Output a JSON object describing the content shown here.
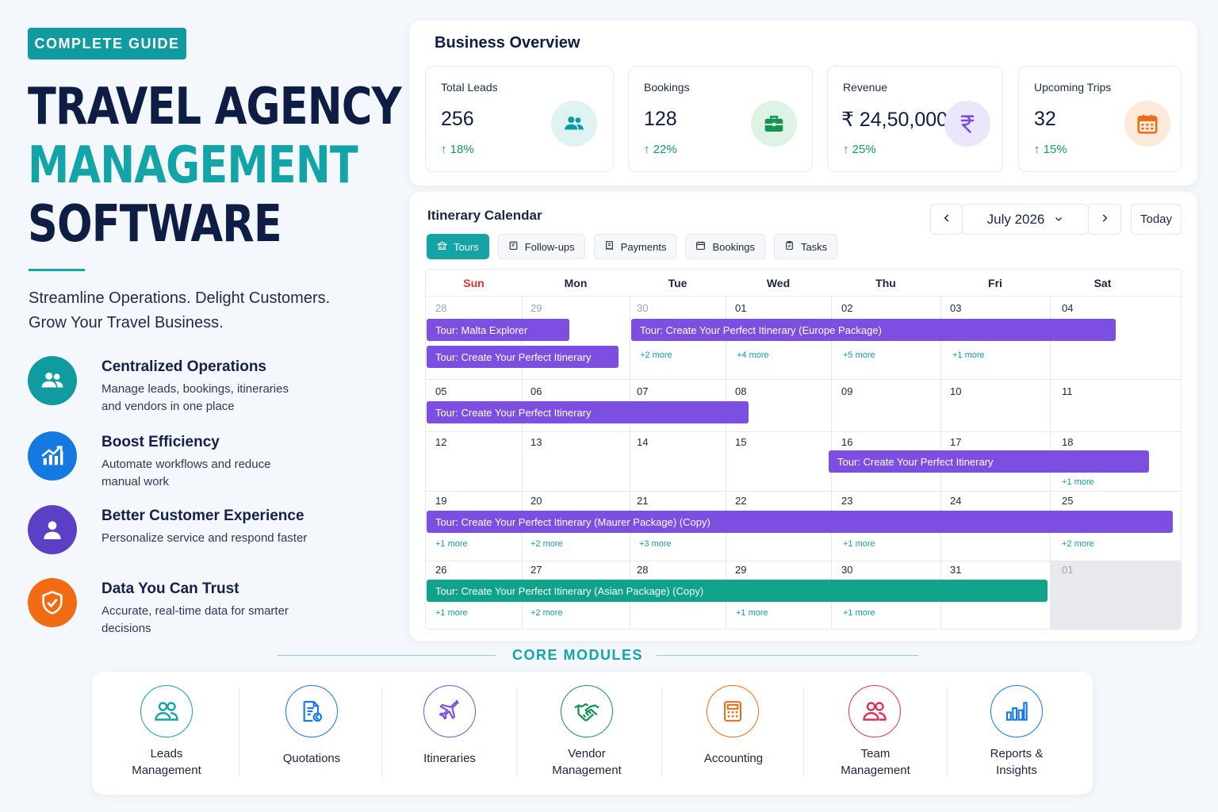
{
  "hero": {
    "badge": "COMPLETE GUIDE",
    "title_line1": "TRAVEL AGENCY",
    "title_line2": "MANAGEMENT",
    "title_line3": "SOFTWARE",
    "tagline_line1": "Streamline Operations. Delight Customers.",
    "tagline_line2": "Grow Your Travel Business."
  },
  "features": [
    {
      "title": "Centralized Operations",
      "desc": "Manage leads, bookings, itineraries and vendors in one place",
      "icon": "users-icon",
      "color": "#0f9b9f"
    },
    {
      "title": "Boost Efficiency",
      "desc": "Automate workflows and reduce manual work",
      "icon": "growth-chart-icon",
      "color": "#1479e0"
    },
    {
      "title": "Better Customer Experience",
      "desc": "Personalize service and respond faster",
      "icon": "user-icon",
      "color": "#5b3fc4"
    },
    {
      "title": "Data You Can Trust",
      "desc": "Accurate, real-time data for smarter decisions",
      "icon": "shield-check-icon",
      "color": "#f06b12"
    }
  ],
  "overview": {
    "title": "Business Overview",
    "stats": [
      {
        "label": "Total Leads",
        "value": "256",
        "change": "18%",
        "icon": "users-icon",
        "icon_bg": "#dff3f3",
        "icon_color": "#0f9b9f"
      },
      {
        "label": "Bookings",
        "value": "128",
        "change": "22%",
        "icon": "briefcase-icon",
        "icon_bg": "#dff2e6",
        "icon_color": "#13944f"
      },
      {
        "label": "Revenue",
        "value": "₹ 24,50,000",
        "change": "25%",
        "icon": "rupee-icon",
        "icon_bg": "#ece6fb",
        "icon_color": "#7c4fe0"
      },
      {
        "label": "Upcoming Trips",
        "value": "32",
        "change": "15%",
        "icon": "calendar-icon",
        "icon_bg": "#fdeadb",
        "icon_color": "#f06b12"
      }
    ]
  },
  "calendar": {
    "title": "Itinerary Calendar",
    "month": "July 2026",
    "today_label": "Today",
    "filters": [
      {
        "label": "Tours",
        "icon": "tours-icon"
      },
      {
        "label": "Follow-ups",
        "icon": "follow-ups-icon"
      },
      {
        "label": "Payments",
        "icon": "payments-icon"
      },
      {
        "label": "Bookings",
        "icon": "bookings-icon"
      },
      {
        "label": "Tasks",
        "icon": "tasks-icon"
      }
    ],
    "days": [
      "Sun",
      "Mon",
      "Tue",
      "Wed",
      "Thu",
      "Fri",
      "Sat"
    ],
    "weeks": [
      [
        "28",
        "29",
        "30",
        "01",
        "02",
        "03",
        "04"
      ],
      [
        "05",
        "06",
        "07",
        "08",
        "09",
        "10",
        "11"
      ],
      [
        "12",
        "13",
        "14",
        "15",
        "16",
        "17",
        "18"
      ],
      [
        "19",
        "20",
        "21",
        "22",
        "23",
        "24",
        "25"
      ],
      [
        "26",
        "27",
        "28",
        "29",
        "30",
        "31",
        "01"
      ]
    ],
    "events": [
      "Tour: Malta Explorer",
      "Tour: Create Your Perfect Itinerary",
      "Tour: Create Your Perfect Itinerary (Europe Package)",
      "Tour: Create Your Perfect Itinerary",
      "Tour: Create Your Perfect Itinerary",
      "Tour: Create Your Perfect Itinerary (Maurer Package) (Copy)",
      "Tour: Create Your Perfect Itinerary (Asian Package) (Copy)"
    ],
    "more_links": [
      "+2 more",
      "+4 more",
      "+5 more",
      "+1 more",
      "+1 more",
      "+1 more",
      "+2 more",
      "+3 more",
      "+1 more",
      "+2 more",
      "+1 more",
      "+2 more",
      "+1 more",
      "+1 more"
    ],
    "colors": {
      "event_purple": "#7c4fe0",
      "event_green": "#0fa48a",
      "sunday_red": "#e0302d"
    }
  },
  "core_modules": {
    "title": "CORE MODULES",
    "items": [
      {
        "line1": "Leads",
        "line2": "Management",
        "icon": "leads-icon",
        "color": "#13a4a7"
      },
      {
        "line1": "Quotations",
        "line2": "",
        "icon": "quotation-icon",
        "color": "#1479e0"
      },
      {
        "line1": "Itineraries",
        "line2": "",
        "icon": "plane-icon",
        "color": "#7c4fe0"
      },
      {
        "line1": "Vendor",
        "line2": "Management",
        "icon": "handshake-icon",
        "color": "#13944f"
      },
      {
        "line1": "Accounting",
        "line2": "",
        "icon": "calculator-icon",
        "color": "#f06b12"
      },
      {
        "line1": "Team",
        "line2": "Management",
        "icon": "team-icon",
        "color": "#e0305a"
      },
      {
        "line1": "Reports &",
        "line2": "Insights",
        "icon": "bar-chart-icon",
        "color": "#1479e0"
      }
    ]
  }
}
